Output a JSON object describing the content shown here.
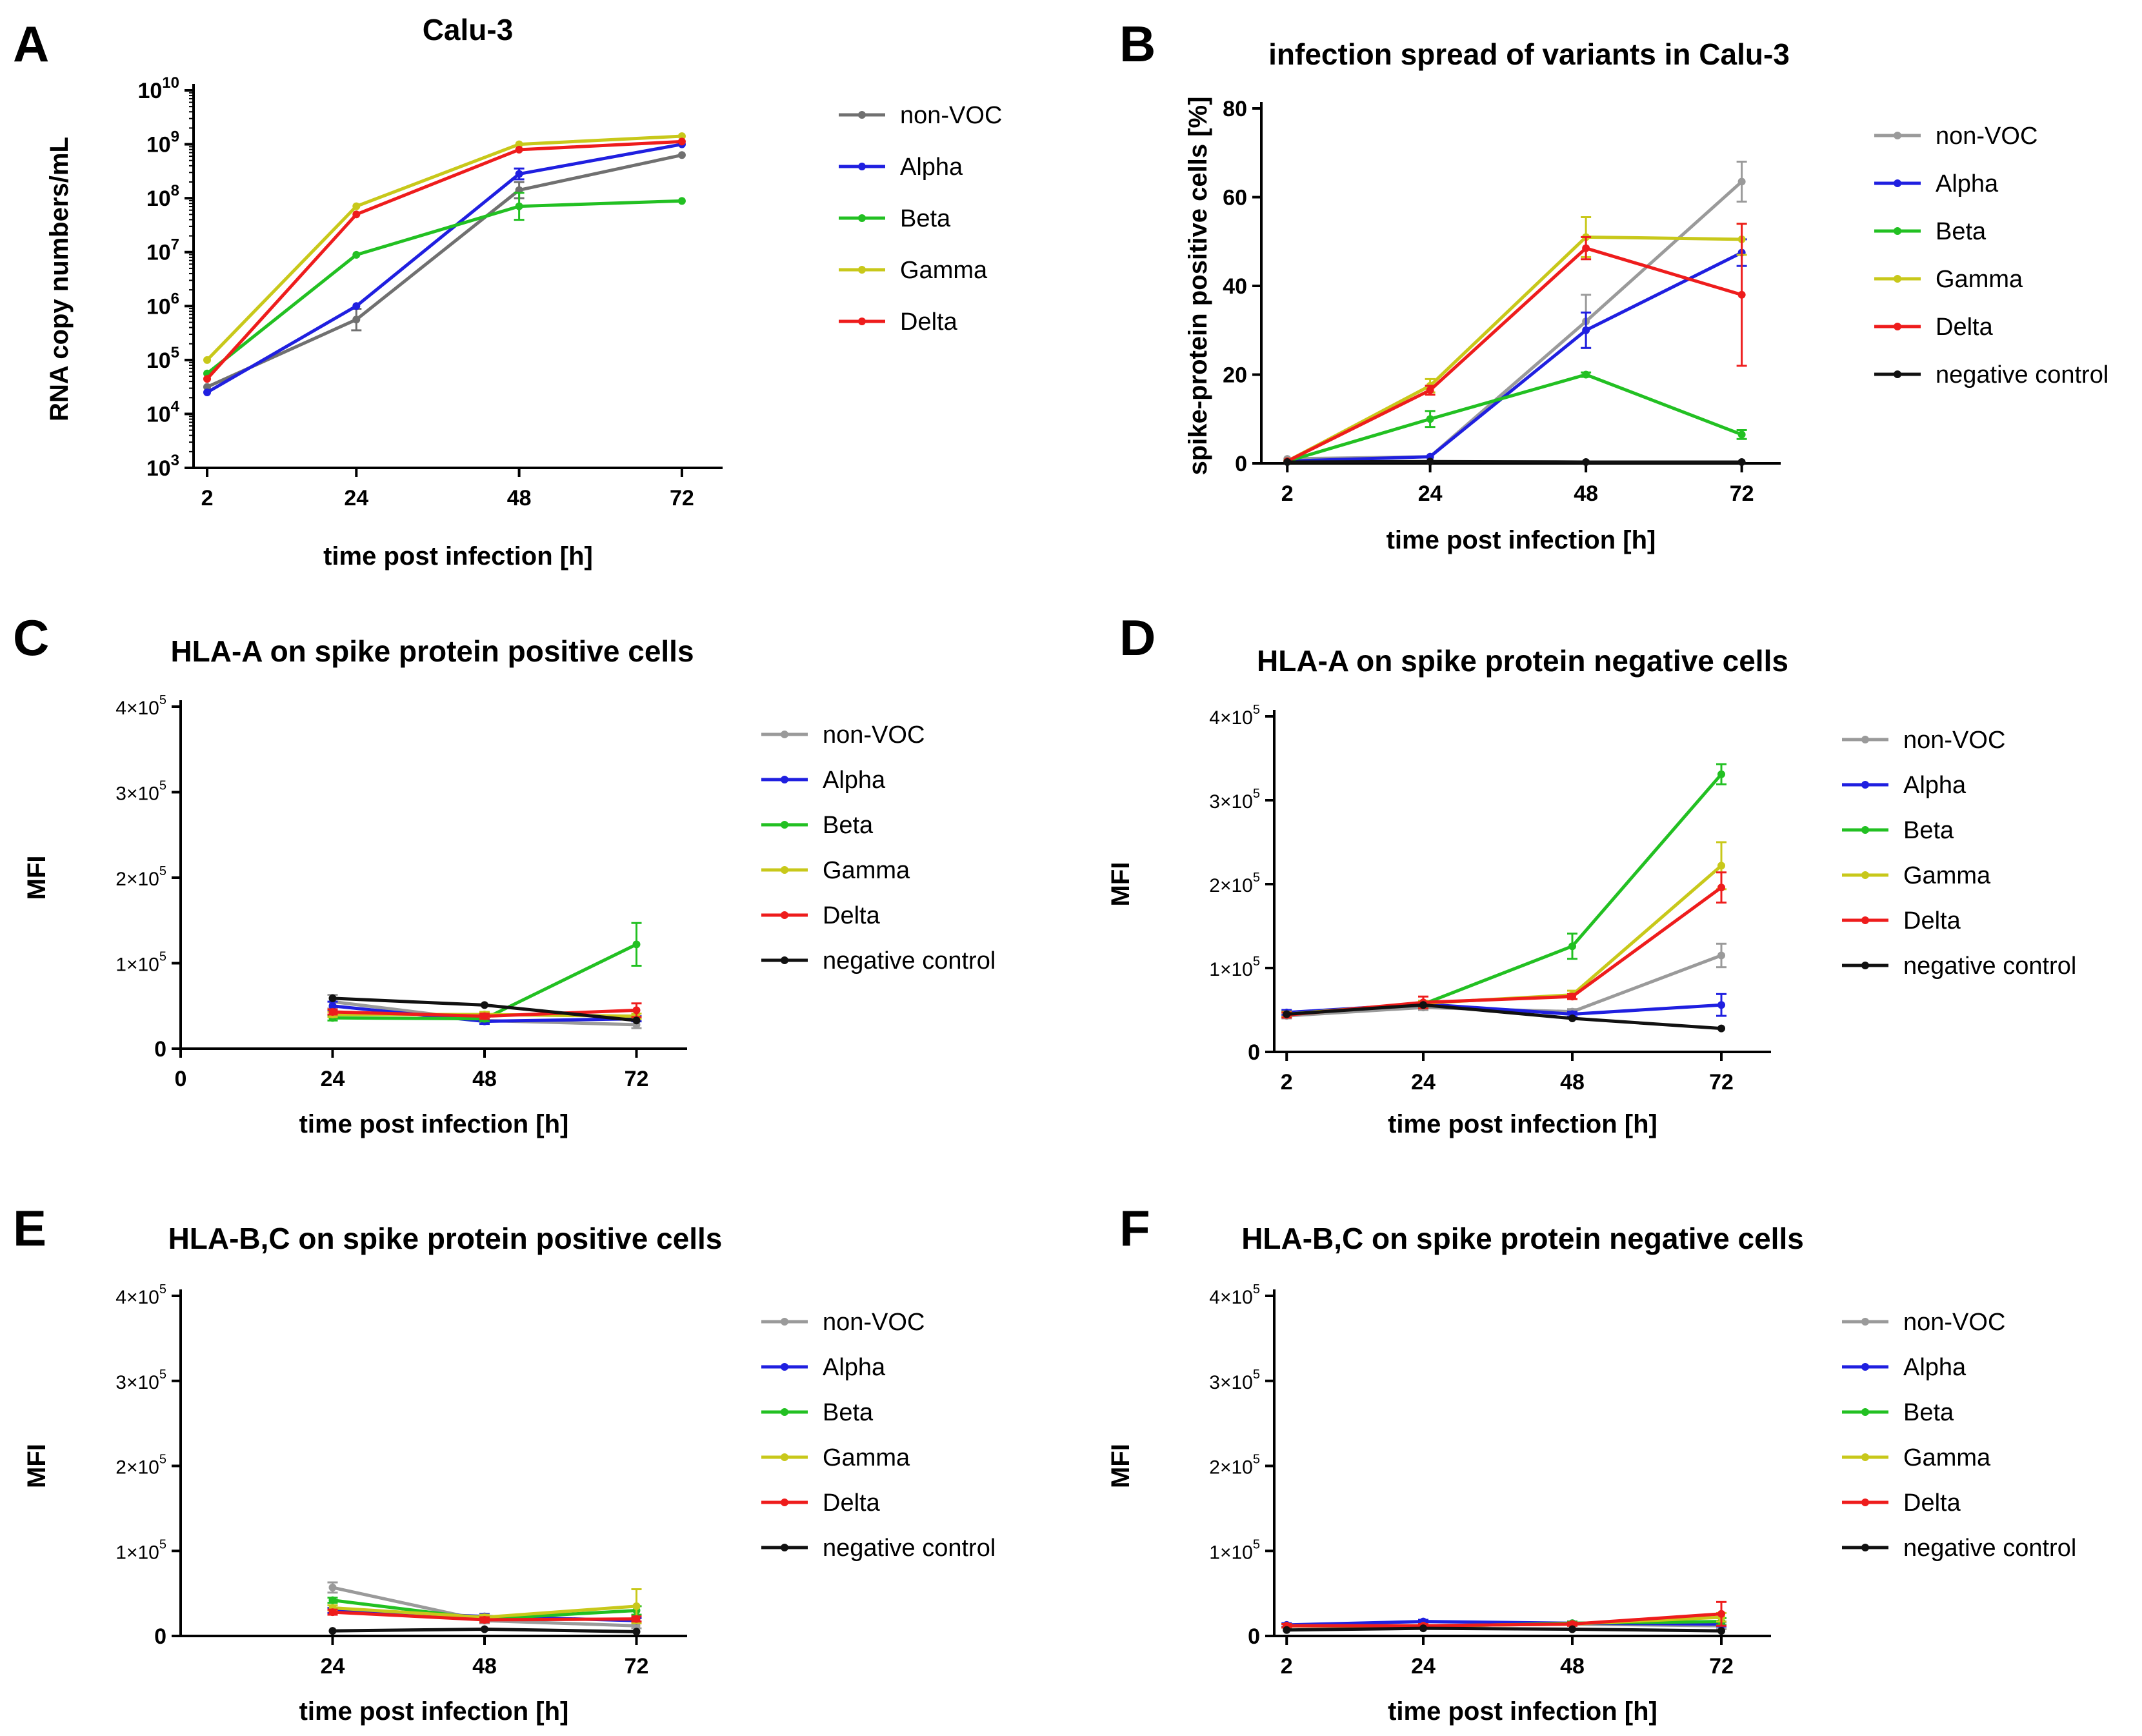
{
  "colors": {
    "non-VOC-dark": "#707070",
    "non-VOC": "#9a9a9a",
    "Alpha": "#1f1fe0",
    "Beta": "#22c022",
    "Gamma": "#c8c81a",
    "Delta": "#ee1c1c",
    "negative control": "#111111"
  },
  "chart_data": [
    {
      "id": "A",
      "letter": "A",
      "type": "line",
      "title": "Calu-3",
      "xlabel": "time post infection [h]",
      "ylabel": "RNA copy numbers/mL",
      "yscale": "log",
      "x": [
        2,
        24,
        48,
        72
      ],
      "xticks": [
        "2",
        "24",
        "48",
        "72"
      ],
      "xlim": [
        0,
        78
      ],
      "ylim": [
        3,
        10
      ],
      "yticks": [
        {
          "v": 3,
          "base": "10",
          "exp": "3"
        },
        {
          "v": 4,
          "base": "10",
          "exp": "4"
        },
        {
          "v": 5,
          "base": "10",
          "exp": "5"
        },
        {
          "v": 6,
          "base": "10",
          "exp": "6"
        },
        {
          "v": 7,
          "base": "10",
          "exp": "7"
        },
        {
          "v": 8,
          "base": "10",
          "exp": "8"
        },
        {
          "v": 9,
          "base": "10",
          "exp": "9"
        },
        {
          "v": 10,
          "base": "10",
          "exp": "10"
        }
      ],
      "series": [
        {
          "name": "non-VOC",
          "color": "#707070",
          "values": [
            4.5,
            5.75,
            8.15,
            8.8
          ],
          "err": [
            0,
            0.2,
            0.15,
            0
          ]
        },
        {
          "name": "Alpha",
          "color": "#1f1fe0",
          "values": [
            4.4,
            6.0,
            8.45,
            9.0
          ],
          "err": [
            0,
            0,
            0.1,
            0
          ]
        },
        {
          "name": "Beta",
          "color": "#22c022",
          "values": [
            4.75,
            6.95,
            7.85,
            7.95
          ],
          "err": [
            0,
            0,
            0.25,
            0
          ]
        },
        {
          "name": "Gamma",
          "color": "#c8c81a",
          "values": [
            5.0,
            7.85,
            9.0,
            9.15
          ],
          "err": [
            0,
            0,
            0,
            0
          ]
        },
        {
          "name": "Delta",
          "color": "#ee1c1c",
          "values": [
            4.65,
            7.7,
            8.9,
            9.05
          ],
          "err": [
            0,
            0,
            0,
            0
          ]
        }
      ],
      "legend": [
        "non-VOC",
        "Alpha",
        "Beta",
        "Gamma",
        "Delta"
      ]
    },
    {
      "id": "B",
      "letter": "B",
      "type": "line",
      "title": "infection spread of variants in Calu-3",
      "xlabel": "time post infection [h]",
      "ylabel": "spike-protein positive cells [%]",
      "yscale": "linear",
      "x": [
        2,
        24,
        48,
        72
      ],
      "xticks": [
        "2",
        "24",
        "48",
        "72"
      ],
      "xlim": [
        -2,
        78
      ],
      "ylim": [
        0,
        80
      ],
      "yticks": [
        {
          "v": 0,
          "label": "0"
        },
        {
          "v": 20,
          "label": "20"
        },
        {
          "v": 40,
          "label": "40"
        },
        {
          "v": 60,
          "label": "60"
        },
        {
          "v": 80,
          "label": "80"
        }
      ],
      "series": [
        {
          "name": "non-VOC",
          "color": "#9a9a9a",
          "values": [
            1,
            1.5,
            32,
            63.5
          ],
          "err": [
            0,
            0,
            6,
            4.5
          ]
        },
        {
          "name": "Alpha",
          "color": "#1f1fe0",
          "values": [
            0.5,
            1.5,
            30,
            47.5
          ],
          "err": [
            0,
            0,
            4,
            3
          ]
        },
        {
          "name": "Beta",
          "color": "#22c022",
          "values": [
            0.5,
            10,
            20,
            6.5
          ],
          "err": [
            0,
            1.8,
            0.5,
            1
          ]
        },
        {
          "name": "Gamma",
          "color": "#c8c81a",
          "values": [
            0.5,
            17.5,
            51,
            50.5
          ],
          "err": [
            0,
            1.5,
            4.5,
            3.5
          ]
        },
        {
          "name": "Delta",
          "color": "#ee1c1c",
          "values": [
            0.5,
            16.5,
            48.5,
            38
          ],
          "err": [
            0,
            1,
            2.5,
            16
          ]
        },
        {
          "name": "negative control",
          "color": "#111111",
          "values": [
            0.3,
            0.4,
            0.3,
            0.3
          ],
          "err": [
            0,
            0,
            0,
            0
          ]
        }
      ],
      "legend": [
        "non-VOC",
        "Alpha",
        "Beta",
        "Gamma",
        "Delta",
        "negative control"
      ]
    },
    {
      "id": "C",
      "letter": "C",
      "type": "line",
      "title": "HLA-A on spike protein positive cells",
      "xlabel": "time post infection [h]",
      "ylabel": "MFI",
      "yscale": "linear",
      "x": [
        24,
        48,
        72
      ],
      "xticks": [
        "0",
        "24",
        "48",
        "72"
      ],
      "xtickvals": [
        0,
        24,
        48,
        72
      ],
      "xlim": [
        0,
        80
      ],
      "ylim": [
        0,
        400000
      ],
      "yticks": [
        {
          "v": 0,
          "label": "0"
        },
        {
          "v": 100000,
          "base": "1×10",
          "exp": "5"
        },
        {
          "v": 200000,
          "base": "2×10",
          "exp": "5"
        },
        {
          "v": 300000,
          "base": "3×10",
          "exp": "5"
        },
        {
          "v": 400000,
          "base": "4×10",
          "exp": "5"
        }
      ],
      "series": [
        {
          "name": "non-VOC",
          "color": "#9a9a9a",
          "values": [
            55000,
            33000,
            28000
          ],
          "err": [
            8000,
            3000,
            4000
          ]
        },
        {
          "name": "Alpha",
          "color": "#1f1fe0",
          "values": [
            50000,
            32000,
            35000
          ],
          "err": [
            5000,
            3000,
            3000
          ]
        },
        {
          "name": "Beta",
          "color": "#22c022",
          "values": [
            36000,
            35000,
            122000
          ],
          "err": [
            3000,
            3000,
            25000
          ]
        },
        {
          "name": "Gamma",
          "color": "#c8c81a",
          "values": [
            40000,
            40000,
            38000
          ],
          "err": [
            3000,
            3000,
            3000
          ]
        },
        {
          "name": "Delta",
          "color": "#ee1c1c",
          "values": [
            43000,
            38000,
            45000
          ],
          "err": [
            3000,
            3000,
            8000
          ]
        },
        {
          "name": "negative control",
          "color": "#111111",
          "values": [
            59000,
            51000,
            33000
          ],
          "err": [
            0,
            0,
            0
          ]
        }
      ],
      "legend": [
        "non-VOC",
        "Alpha",
        "Beta",
        "Gamma",
        "Delta",
        "negative control"
      ]
    },
    {
      "id": "D",
      "letter": "D",
      "type": "line",
      "title": "HLA-A on spike protein negative cells",
      "xlabel": "time post infection [h]",
      "ylabel": "MFI",
      "yscale": "linear",
      "x": [
        2,
        24,
        48,
        72
      ],
      "xticks": [
        "2",
        "24",
        "48",
        "72"
      ],
      "xlim": [
        0,
        80
      ],
      "ylim": [
        0,
        400000
      ],
      "yticks": [
        {
          "v": 0,
          "label": "0"
        },
        {
          "v": 100000,
          "base": "1×10",
          "exp": "5"
        },
        {
          "v": 200000,
          "base": "2×10",
          "exp": "5"
        },
        {
          "v": 300000,
          "base": "3×10",
          "exp": "5"
        },
        {
          "v": 400000,
          "base": "4×10",
          "exp": "5"
        }
      ],
      "series": [
        {
          "name": "non-VOC",
          "color": "#9a9a9a",
          "values": [
            43000,
            53000,
            48000,
            115000
          ],
          "err": [
            3000,
            3000,
            3000,
            14000
          ]
        },
        {
          "name": "Alpha",
          "color": "#1f1fe0",
          "values": [
            47000,
            57000,
            45000,
            56000
          ],
          "err": [
            3000,
            3000,
            3000,
            13000
          ]
        },
        {
          "name": "Beta",
          "color": "#22c022",
          "values": [
            45000,
            57000,
            126000,
            331000
          ],
          "err": [
            3000,
            3000,
            15000,
            12000
          ]
        },
        {
          "name": "Gamma",
          "color": "#c8c81a",
          "values": [
            45000,
            58000,
            68000,
            222000
          ],
          "err": [
            3000,
            3000,
            5000,
            28000
          ]
        },
        {
          "name": "Delta",
          "color": "#ee1c1c",
          "values": [
            44000,
            59000,
            66000,
            196000
          ],
          "err": [
            3000,
            7000,
            3000,
            18000
          ]
        },
        {
          "name": "negative control",
          "color": "#111111",
          "values": [
            45000,
            56000,
            40000,
            28000
          ],
          "err": [
            0,
            0,
            0,
            0
          ]
        }
      ],
      "legend": [
        "non-VOC",
        "Alpha",
        "Beta",
        "Gamma",
        "Delta",
        "negative control"
      ]
    },
    {
      "id": "E",
      "letter": "E",
      "type": "line",
      "title": "HLA-B,C on spike protein positive cells",
      "xlabel": "time post infection [h]",
      "ylabel": "MFI",
      "yscale": "linear",
      "x": [
        24,
        48,
        72
      ],
      "xticks": [
        "24",
        "48",
        "72"
      ],
      "xlim": [
        0,
        80
      ],
      "ylim": [
        0,
        400000
      ],
      "yticks": [
        {
          "v": 0,
          "label": "0"
        },
        {
          "v": 100000,
          "base": "1×10",
          "exp": "5"
        },
        {
          "v": 200000,
          "base": "2×10",
          "exp": "5"
        },
        {
          "v": 300000,
          "base": "3×10",
          "exp": "5"
        },
        {
          "v": 400000,
          "base": "4×10",
          "exp": "5"
        }
      ],
      "series": [
        {
          "name": "non-VOC",
          "color": "#9a9a9a",
          "values": [
            57000,
            18000,
            12000
          ],
          "err": [
            6000,
            3000,
            3000
          ]
        },
        {
          "name": "Alpha",
          "color": "#1f1fe0",
          "values": [
            30000,
            23000,
            18000
          ],
          "err": [
            3000,
            3000,
            3000
          ]
        },
        {
          "name": "Beta",
          "color": "#22c022",
          "values": [
            42000,
            20000,
            30000
          ],
          "err": [
            3000,
            3000,
            5000
          ]
        },
        {
          "name": "Gamma",
          "color": "#c8c81a",
          "values": [
            33000,
            22000,
            35000
          ],
          "err": [
            3000,
            3000,
            20000
          ]
        },
        {
          "name": "Delta",
          "color": "#ee1c1c",
          "values": [
            28000,
            19000,
            20000
          ],
          "err": [
            3000,
            3000,
            3000
          ]
        },
        {
          "name": "negative control",
          "color": "#111111",
          "values": [
            6000,
            8000,
            5000
          ],
          "err": [
            0,
            0,
            0
          ]
        }
      ],
      "legend": [
        "non-VOC",
        "Alpha",
        "Beta",
        "Gamma",
        "Delta",
        "negative control"
      ]
    },
    {
      "id": "F",
      "letter": "F",
      "type": "line",
      "title": "HLA-B,C on spike protein negative cells",
      "xlabel": "time post infection [h]",
      "ylabel": "MFI",
      "yscale": "linear",
      "x": [
        2,
        24,
        48,
        72
      ],
      "xticks": [
        "2",
        "24",
        "48",
        "72"
      ],
      "xlim": [
        0,
        80
      ],
      "ylim": [
        0,
        400000
      ],
      "yticks": [
        {
          "v": 0,
          "label": "0"
        },
        {
          "v": 100000,
          "base": "1×10",
          "exp": "5"
        },
        {
          "v": 200000,
          "base": "2×10",
          "exp": "5"
        },
        {
          "v": 300000,
          "base": "3×10",
          "exp": "5"
        },
        {
          "v": 400000,
          "base": "4×10",
          "exp": "5"
        }
      ],
      "series": [
        {
          "name": "non-VOC",
          "color": "#9a9a9a",
          "values": [
            12000,
            12000,
            14000,
            12000
          ],
          "err": [
            2000,
            2000,
            2000,
            4000
          ]
        },
        {
          "name": "Alpha",
          "color": "#1f1fe0",
          "values": [
            13000,
            17000,
            15000,
            14000
          ],
          "err": [
            2000,
            2000,
            2000,
            3000
          ]
        },
        {
          "name": "Beta",
          "color": "#22c022",
          "values": [
            12000,
            11000,
            15000,
            17000
          ],
          "err": [
            2000,
            2000,
            2000,
            4000
          ]
        },
        {
          "name": "Gamma",
          "color": "#c8c81a",
          "values": [
            12000,
            12000,
            14000,
            22000
          ],
          "err": [
            2000,
            2000,
            2000,
            5000
          ]
        },
        {
          "name": "Delta",
          "color": "#ee1c1c",
          "values": [
            12000,
            12000,
            14000,
            26000
          ],
          "err": [
            2000,
            2000,
            2000,
            14000
          ]
        },
        {
          "name": "negative control",
          "color": "#111111",
          "values": [
            7000,
            9000,
            8000,
            6000
          ],
          "err": [
            0,
            0,
            0,
            0
          ]
        }
      ],
      "legend": [
        "non-VOC",
        "Alpha",
        "Beta",
        "Gamma",
        "Delta",
        "negative control"
      ]
    }
  ]
}
